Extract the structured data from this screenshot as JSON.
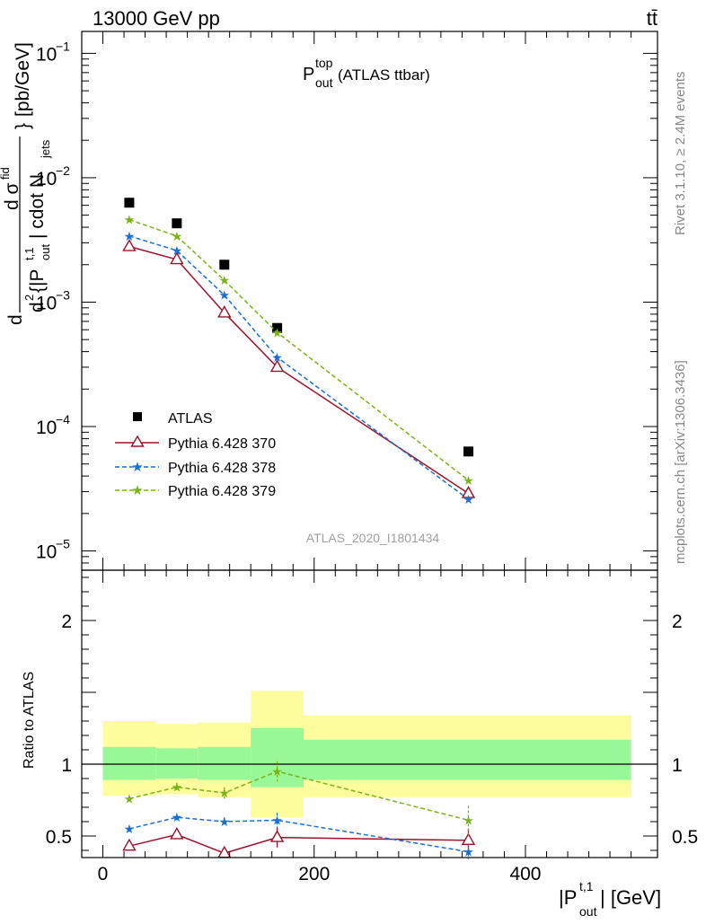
{
  "header": {
    "energy_label": "13000 GeV pp",
    "process_label": "tt̄"
  },
  "side_labels": {
    "rivet": "Rivet 3.1.10, ≥ 2.4M events",
    "mcplots": "mcplots.cern.ch [arXiv:1306.3436]"
  },
  "chart_data": [
    {
      "type": "scatter",
      "title_main": "P",
      "title_sup": "top",
      "title_sub": "out",
      "title_suffix": " (ATLAS ttbar)",
      "watermark": "ATLAS_2020_I1801434",
      "ylabel_parts": {
        "d_prefix": "d",
        "sigma_num": "d σ",
        "sigma_sup": "fid",
        "den_d2": "d",
        "den_rest": "{|P",
        "den_sup": "t,1",
        "den_sub": "out",
        "den_tail": "| cdot N",
        "den_tail_sub": "jets",
        "bracket": "}",
        "units": "[pb/GeV]"
      },
      "yscale": "log",
      "ylim": [
        7e-06,
        0.15
      ],
      "xlim": [
        -20,
        525
      ],
      "y_ticks": [
        {
          "v": 1e-05,
          "base": "10",
          "exp": "−5"
        },
        {
          "v": 0.0001,
          "base": "10",
          "exp": "−4"
        },
        {
          "v": 0.001,
          "base": "10",
          "exp": "−3"
        },
        {
          "v": 0.01,
          "base": "10",
          "exp": "−2"
        },
        {
          "v": 0.1,
          "base": "10",
          "exp": "−1"
        }
      ],
      "series": [
        {
          "name": "ATLAS",
          "color": "#000000",
          "marker": "square",
          "x": [
            25,
            70,
            115,
            165,
            346
          ],
          "y": [
            0.0063,
            0.0043,
            0.002,
            0.00062,
            6.3e-05
          ]
        },
        {
          "name": "Pythia 6.428 370",
          "color": "#a0102a",
          "marker": "triangle",
          "line": "solid",
          "x": [
            25,
            70,
            115,
            165,
            346
          ],
          "y": [
            0.0028,
            0.0022,
            0.00082,
            0.0003,
            2.9e-05
          ]
        },
        {
          "name": "Pythia 6.428 378",
          "color": "#1a6fd6",
          "marker": "star",
          "line": "dashed",
          "x": [
            25,
            70,
            115,
            165,
            346
          ],
          "y": [
            0.0034,
            0.0026,
            0.00114,
            0.00036,
            2.6e-05
          ]
        },
        {
          "name": "Pythia 6.428 379",
          "color": "#7ab317",
          "marker": "star",
          "line": "dashed",
          "x": [
            25,
            70,
            115,
            165,
            346
          ],
          "y": [
            0.0046,
            0.0034,
            0.0015,
            0.00057,
            3.7e-05
          ]
        }
      ]
    },
    {
      "type": "scatter",
      "ylabel": "Ratio to ATLAS",
      "xlabel_main": "|P",
      "xlabel_sup": "t,1",
      "xlabel_sub": "out",
      "xlabel_tail": "| [GeV]",
      "xlim": [
        -20,
        525
      ],
      "ylim": [
        0.35,
        2.35
      ],
      "x_ticks": [
        {
          "v": 0,
          "label": "0"
        },
        {
          "v": 200,
          "label": "200"
        },
        {
          "v": 400,
          "label": "400"
        }
      ],
      "y_ticks": [
        {
          "v": 0.5,
          "label": "0.5"
        },
        {
          "v": 1,
          "label": "1"
        },
        {
          "v": 2,
          "label": "2"
        }
      ],
      "bands": [
        {
          "x0": 0,
          "x1": 50,
          "yellow": [
            0.78,
            1.3
          ],
          "green": [
            0.89,
            1.12
          ]
        },
        {
          "x0": 50,
          "x1": 90,
          "yellow": [
            0.79,
            1.28
          ],
          "green": [
            0.9,
            1.11
          ]
        },
        {
          "x0": 90,
          "x1": 140,
          "yellow": [
            0.77,
            1.29
          ],
          "green": [
            0.89,
            1.12
          ]
        },
        {
          "x0": 140,
          "x1": 190,
          "yellow": [
            0.63,
            1.51
          ],
          "green": [
            0.84,
            1.25
          ]
        },
        {
          "x0": 190,
          "x1": 500,
          "yellow": [
            0.77,
            1.34
          ],
          "green": [
            0.89,
            1.17
          ]
        }
      ],
      "series": [
        {
          "name": "Pythia 6.428 370",
          "color": "#a0102a",
          "marker": "triangle",
          "line": "solid",
          "x": [
            25,
            70,
            115,
            165,
            346
          ],
          "y": [
            0.43,
            0.51,
            0.38,
            0.49,
            0.47
          ],
          "err": [
            0.02,
            0.02,
            0.03,
            0.07,
            0.08
          ]
        },
        {
          "name": "Pythia 6.428 378",
          "color": "#1a6fd6",
          "marker": "star",
          "line": "dashed",
          "x": [
            25,
            70,
            115,
            165,
            346
          ],
          "y": [
            0.55,
            0.63,
            0.6,
            0.61,
            0.39
          ],
          "err": [
            0.02,
            0.02,
            0.03,
            0.05,
            0.05
          ]
        },
        {
          "name": "Pythia 6.428 379",
          "color": "#7ab317",
          "marker": "star",
          "line": "dashed",
          "x": [
            25,
            70,
            115,
            165,
            346
          ],
          "y": [
            0.76,
            0.84,
            0.8,
            0.95,
            0.61
          ],
          "err": [
            0.02,
            0.03,
            0.04,
            0.07,
            0.1
          ]
        }
      ]
    }
  ]
}
